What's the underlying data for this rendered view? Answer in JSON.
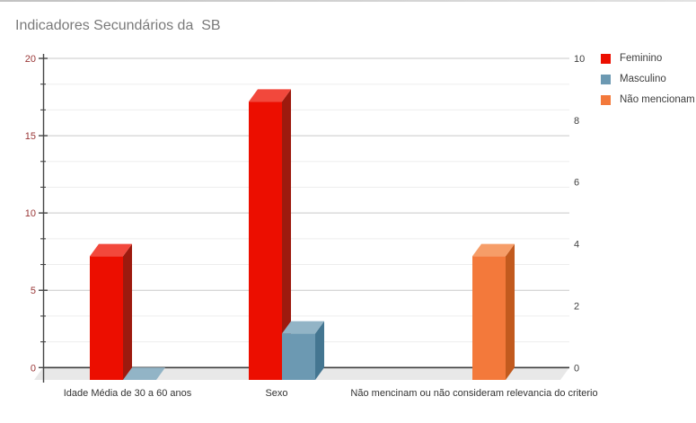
{
  "title": "Indicadores Secundários da  SB",
  "chart_data": {
    "type": "bar",
    "projection": "3d",
    "title": "Indicadores Secundários da  SB",
    "categories": [
      "Idade Média de 30 a 60 anos",
      "Sexo",
      "Não mencinam ou não consideram relevancia do criterio"
    ],
    "series": [
      {
        "name": "Feminino",
        "axis": "left",
        "values": [
          8,
          18,
          null
        ],
        "color_front": "#ec0e00",
        "color_top": "#f2483c",
        "color_side": "#9d1a0e"
      },
      {
        "name": "Masculino",
        "axis": "left",
        "values": [
          0,
          3,
          null
        ],
        "color_front": "#6c99b2",
        "color_top": "#92b4c6",
        "color_side": "#447691"
      },
      {
        "name": "Não mencionam",
        "axis": "right",
        "values": [
          null,
          null,
          4
        ],
        "color_front": "#f3793b",
        "color_top": "#f69d68",
        "color_side": "#c25a1e"
      }
    ],
    "left_axis": {
      "min": 0,
      "max": 20,
      "ticks": [
        0,
        5,
        10,
        15,
        20
      ],
      "minor_per_major": 3,
      "tick_color": "#993636"
    },
    "right_axis": {
      "min": 0,
      "max": 10,
      "ticks": [
        0,
        2,
        4,
        6,
        8,
        10
      ],
      "tick_color": "#3f3f3f"
    },
    "grid": true,
    "legend": {
      "position": "top-right",
      "entries": [
        {
          "label": "Feminino"
        },
        {
          "label": "Masculino"
        },
        {
          "label": "Não mencionam"
        }
      ]
    }
  }
}
